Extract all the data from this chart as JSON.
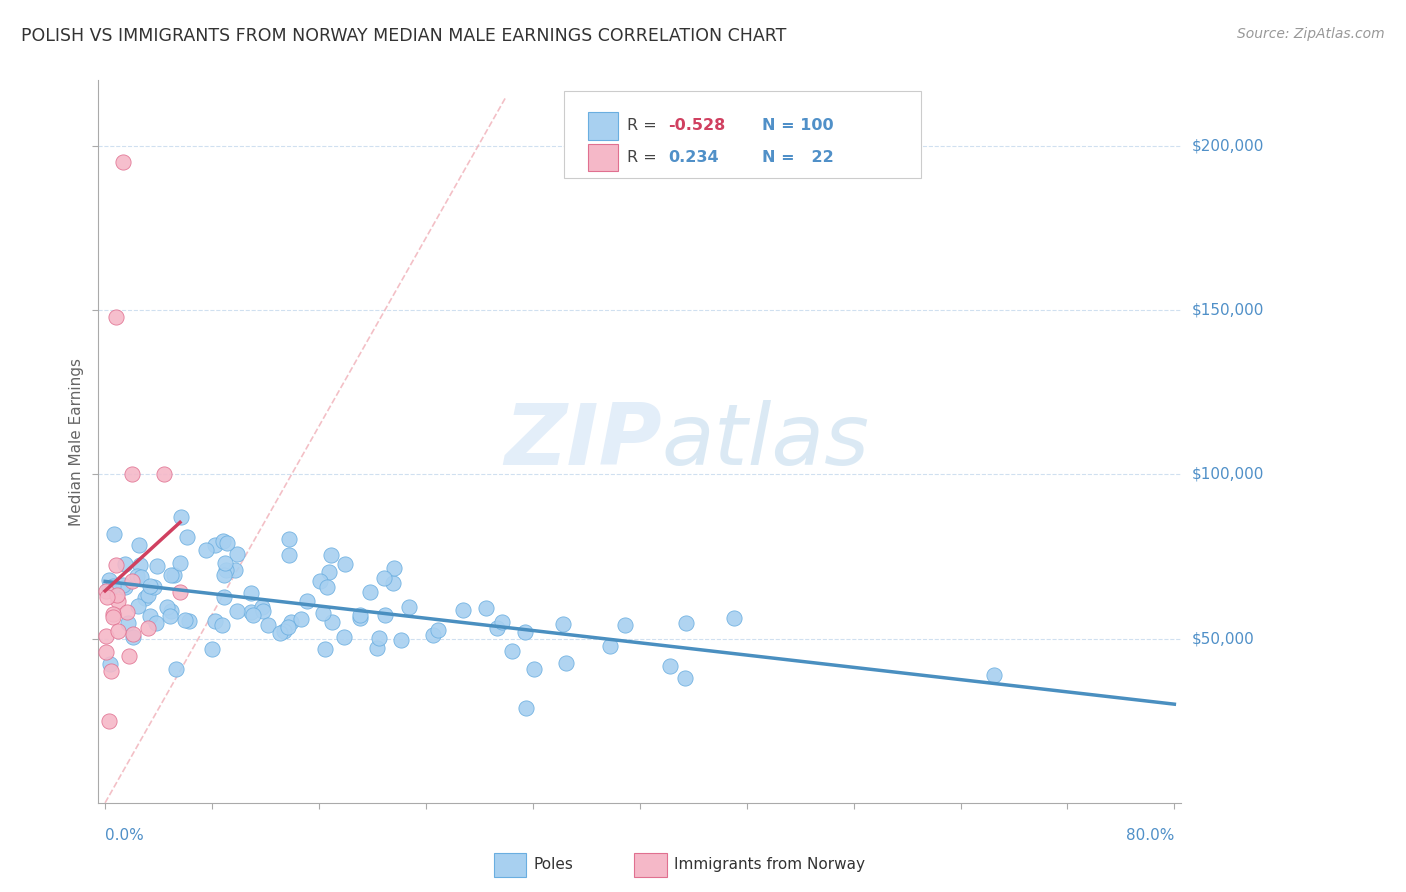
{
  "title": "POLISH VS IMMIGRANTS FROM NORWAY MEDIAN MALE EARNINGS CORRELATION CHART",
  "source": "Source: ZipAtlas.com",
  "ylabel": "Median Male Earnings",
  "background_color": "#ffffff",
  "watermark_text": "ZIPatlas",
  "poles_color": "#a8d0f0",
  "poles_edge_color": "#6aaee0",
  "norway_color": "#f5b8c8",
  "norway_edge_color": "#e07090",
  "trend_poles_color": "#4a8fc0",
  "trend_norway_color": "#d04060",
  "diag_color": "#f0b0b8",
  "axis_color": "#aaaaaa",
  "label_color": "#5090c8",
  "grid_color": "#d0e0f0",
  "title_color": "#333333",
  "source_color": "#999999"
}
